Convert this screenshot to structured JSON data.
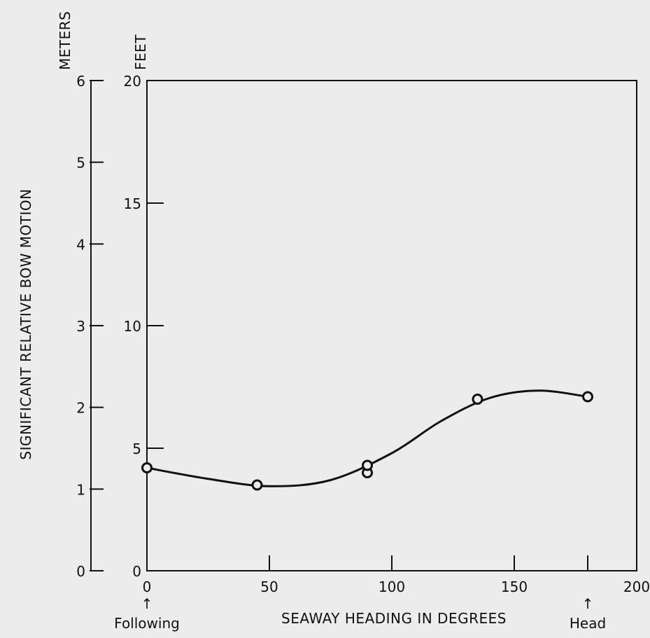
{
  "chart_data": {
    "type": "line",
    "title": "",
    "xlabel": "SEAWAY HEADING IN DEGREES",
    "ylabel": "SIGNIFICANT RELATIVE BOW MOTION",
    "left_axis_unit": "METERS",
    "right_axis_unit": "FEET",
    "xlim": [
      0,
      200
    ],
    "ylim_feet": [
      0,
      20
    ],
    "ylim_meters": [
      0,
      6
    ],
    "x_ticks": [
      0,
      50,
      100,
      150,
      200
    ],
    "feet_ticks": [
      0,
      5,
      10,
      15,
      20
    ],
    "meter_ticks": [
      0,
      1,
      2,
      3,
      4,
      5,
      6
    ],
    "annotations": [
      {
        "x": 0,
        "text": "Following"
      },
      {
        "x": 180,
        "text": "Head"
      }
    ],
    "grid": false,
    "series": [
      {
        "marker": "open-circle",
        "points": [
          {
            "x": 0,
            "y": 4.2
          },
          {
            "x": 45,
            "y": 3.5
          },
          {
            "x": 90,
            "y": 4.0
          },
          {
            "x": 90,
            "y": 4.3
          },
          {
            "x": 135,
            "y": 7.0
          },
          {
            "x": 180,
            "y": 7.1
          }
        ],
        "curve": [
          {
            "x": 0,
            "y": 4.2
          },
          {
            "x": 25,
            "y": 3.75
          },
          {
            "x": 50,
            "y": 3.45
          },
          {
            "x": 75,
            "y": 3.7
          },
          {
            "x": 100,
            "y": 4.8
          },
          {
            "x": 120,
            "y": 6.1
          },
          {
            "x": 140,
            "y": 7.05
          },
          {
            "x": 160,
            "y": 7.35
          },
          {
            "x": 180,
            "y": 7.1
          }
        ]
      }
    ]
  }
}
